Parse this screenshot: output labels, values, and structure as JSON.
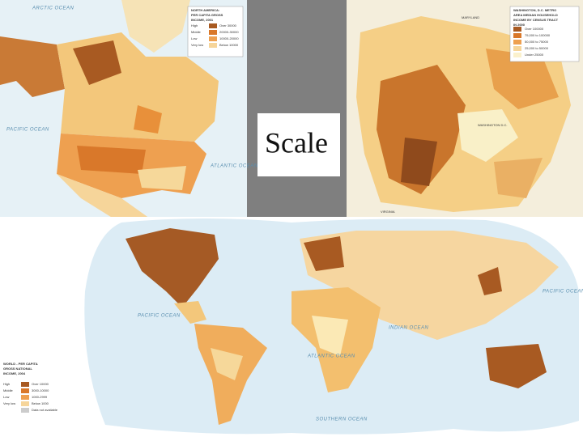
{
  "slide": {
    "title": "Scale"
  },
  "maps": [
    {
      "title": [
        "NORTH AMERICA:",
        "PER CAPITA GROSS",
        "INCOME, 2001"
      ],
      "labels": [
        "ARCTIC OCEAN",
        "PACIFIC OCEAN",
        "ATLANTIC OCEAN"
      ],
      "legend": [
        {
          "level": "High",
          "range": "Over 30000"
        },
        {
          "level": "Middle",
          "range": "20000-30000"
        },
        {
          "level": "Low",
          "range": "10000-20000"
        },
        {
          "level": "Very low",
          "range": "Below 10000"
        }
      ]
    },
    {
      "title": [
        "WASHINGTON, D.C. METRO",
        "AREA MEDIAN HOUSEHOLD",
        "INCOME BY CENSUS TRACT",
        "IN 2000"
      ],
      "labels": [
        "MARYLAND",
        "WASHINGTON D.C.",
        "VIRGINIA"
      ],
      "legend": [
        "Over 100000",
        "75,000 to 100000",
        "50,000 to 75000",
        "25,000 to 50000",
        "Under 25000"
      ]
    },
    {
      "title": [
        "WORLD - PER CAPITA",
        "GROSS NATIONAL",
        "INCOME, 2004"
      ],
      "labels": [
        "PACIFIC OCEAN",
        "ATLANTIC OCEAN",
        "INDIAN OCEAN",
        "PACIFIC OCEAN",
        "SOUTHERN OCEAN"
      ],
      "legend": [
        {
          "level": "High",
          "range": "Over 10000"
        },
        {
          "level": "Middle",
          "range": "3000-10000"
        },
        {
          "level": "Low",
          "range": "1000-2999"
        },
        {
          "level": "Very low",
          "range": "Below 1000"
        },
        {
          "level": "",
          "range": "Data not available"
        }
      ]
    }
  ]
}
